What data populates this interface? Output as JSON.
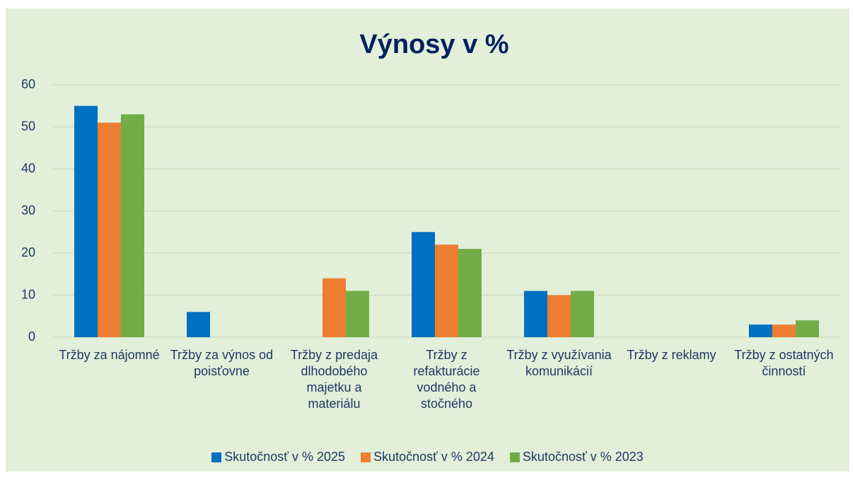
{
  "chart_data": {
    "type": "bar",
    "title": "Výnosy v %",
    "categories": [
      "Tržby za nájomné",
      "Tržby za výnos od poisťovne",
      "Tržby z predaja dlhodobého majetku a materiálu",
      "Tržby z refakturácie vodného a stočného",
      "Tržby z využívania komunikácií",
      "Tržby z reklamy",
      "Tržby z ostatných činností"
    ],
    "series": [
      {
        "name": "Skutočnosť v % 2025",
        "color": "#0070c0",
        "values": [
          55,
          6,
          0,
          25,
          11,
          0,
          3
        ]
      },
      {
        "name": "Skutočnosť v % 2024",
        "color": "#ed7d31",
        "values": [
          51,
          0,
          14,
          22,
          10,
          0,
          3
        ]
      },
      {
        "name": "Skutočnosť v % 2023",
        "color": "#70ad47",
        "values": [
          53,
          0,
          11,
          21,
          11,
          0,
          4
        ]
      }
    ],
    "ylim": [
      0,
      60
    ],
    "yticks": [
      0,
      10,
      20,
      30,
      40,
      50,
      60
    ],
    "grid": true,
    "legend": "bottom"
  }
}
